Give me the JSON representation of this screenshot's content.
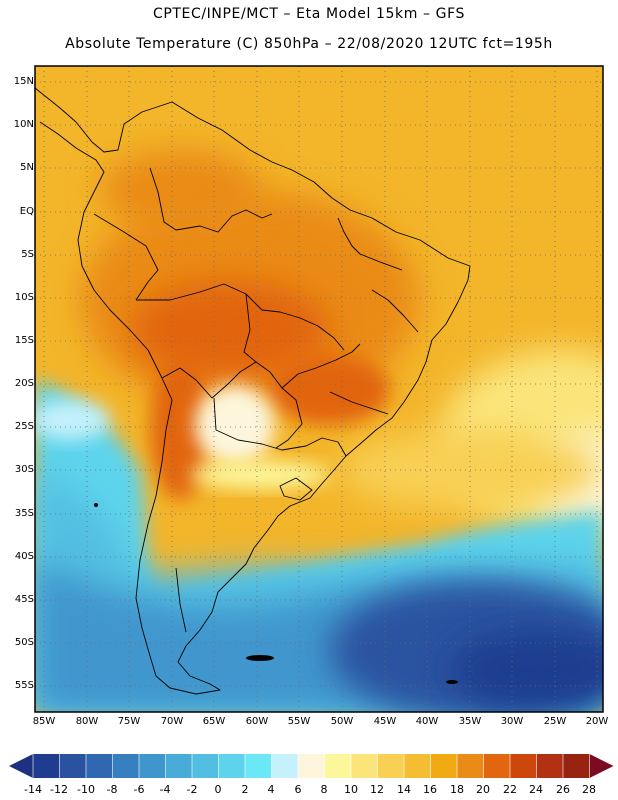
{
  "header": {
    "line1": "CPTEC/INPE/MCT –  Eta Model 15km – GFS",
    "line2": "Absolute Temperature (C) 850hPa – 22/08/2020 12UTC fct=195h"
  },
  "latitude_labels": [
    "15N",
    "10N",
    "5N",
    "EQ",
    "5S",
    "10S",
    "15S",
    "20S",
    "25S",
    "30S",
    "35S",
    "40S",
    "45S",
    "50S",
    "55S"
  ],
  "longitude_labels": [
    "85W",
    "80W",
    "75W",
    "70W",
    "65W",
    "60W",
    "55W",
    "50W",
    "45W",
    "40W",
    "35W",
    "30W",
    "25W",
    "20W"
  ],
  "colorbar": {
    "labels": [
      "-14",
      "-12",
      "-10",
      "-8",
      "-6",
      "-4",
      "-2",
      "0",
      "2",
      "4",
      "6",
      "8",
      "10",
      "12",
      "14",
      "16",
      "18",
      "20",
      "22",
      "24",
      "26",
      "28"
    ],
    "colors": [
      "#1f3d8f",
      "#2a52a0",
      "#2f67b1",
      "#367fc0",
      "#3f96cd",
      "#49abd8",
      "#52bfe2",
      "#5dd4ec",
      "#6be8f6",
      "#c4f1fb",
      "#fdf6dc",
      "#fdf79b",
      "#fbe57a",
      "#f8d054",
      "#f5bd33",
      "#f2aa12",
      "#ea8b18",
      "#e26510",
      "#cd470d",
      "#b23113",
      "#962410",
      "#7b1716"
    ],
    "low_color": "#1e3080",
    "high_color": "#7b0b22"
  }
}
